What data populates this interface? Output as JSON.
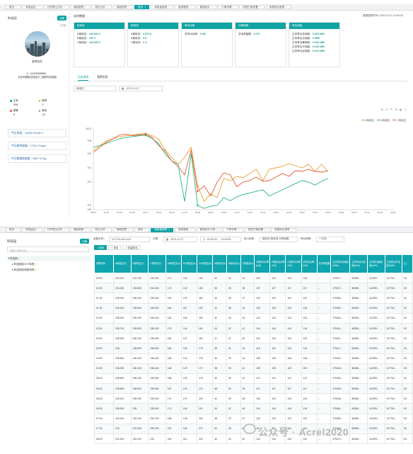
{
  "top_tabs": [
    "首页",
    "用电监控",
    "分项同比分析",
    "能耗报表",
    "同比分析",
    "用能报表",
    "首页",
    "电参量报表",
    "能源报表",
    "能耗统计",
    "订单详情",
    "收费方案设置",
    "电费综合报表"
  ],
  "top_active": 6,
  "bottom_tabs": [
    "首页",
    "用电监控",
    "分项同比分析",
    "能耗报表",
    "同比分析",
    "用能报表",
    "首页",
    "电参量报表",
    "能源报表",
    "能耗统计计算",
    "订单详情",
    "收费方案设置",
    "电费综合报表"
  ],
  "bottom_active": 7,
  "panel1": {
    "tree_title": "科技园",
    "switch_label": "切换",
    "switch_hint": "(切换)",
    "station_name": "变电站名",
    "station_id": "A（10206338968）",
    "station_addr": "北京市朝阳区科技中二路研究科技园",
    "counts": [
      {
        "label": "正常",
        "value": "398",
        "color": "#10a3a3"
      },
      {
        "label": "故障",
        "value": "0",
        "color": "#e6b619"
      },
      {
        "label": "报警",
        "value": "6",
        "color": "#e85a4f"
      },
      {
        "label": "离线",
        "value": "15",
        "color": "#999999"
      }
    ],
    "stats": [
      "今日用电：14159.25 kW·h",
      "今日碳排放量：1740.17 kgce",
      "今日碳减排放量：5657.14 kg"
    ],
    "realtime_label": "实时数据",
    "update_time": "数据更新时间: 2023-10-27 14:45:00",
    "cards": [
      {
        "title": "相电压",
        "lines": [
          [
            "A相电压：",
            "230.600 V"
          ],
          [
            "B相电压：",
            "230 V"
          ],
          [
            "C相电压：",
            "231.600 V"
          ]
        ]
      },
      {
        "title": "相电流",
        "lines": [
          [
            "A相电流：",
            "0.070 A"
          ],
          [
            "B相电流：",
            "0 A"
          ],
          [
            "C相电流：",
            "0 A"
          ]
        ]
      },
      {
        "title": "有功功率",
        "lines": [
          [
            "总有功功率：",
            "0 kW"
          ]
        ]
      },
      {
        "title": "功率因数",
        "lines": [
          [
            "总功率因数：",
            "0.270"
          ]
        ]
      },
      {
        "title": "有功电能",
        "lines": [
          [
            "正向有功总电能：",
            "0.430 kWh"
          ],
          [
            "正向有功尖电能：",
            "0 kWh"
          ],
          [
            "正向有功峰电能：",
            "0.150 kWh"
          ],
          [
            "正向有功平电能：",
            "0.160 kWh"
          ],
          [
            "正向有功谷电能：",
            "0.120 kWh"
          ]
        ]
      }
    ],
    "tabs": [
      "历史曲线",
      "报警信息"
    ],
    "param_select": "相电压",
    "date_select": "2023-10-27",
    "toolbar_glyphs": "↻ ⤢ ↶ ⟲ ▤ ⇩"
  },
  "chart_data": {
    "type": "line",
    "x": [
      "00:00",
      "01:00",
      "02:00",
      "03:00",
      "04:00",
      "05:00",
      "06:00",
      "07:00",
      "08:00",
      "09:00",
      "10:00",
      "11:00",
      "12:00",
      "13:00",
      "14:00",
      "15:00",
      "16:00",
      "17:00",
      "18:00",
      "19:00",
      "20:00",
      "21:00",
      "22:00",
      "23:00"
    ],
    "ylim": [
      228,
      240.8
    ],
    "yticks": [
      "228",
      "229",
      "232",
      "234",
      "236",
      "238",
      "240.8"
    ],
    "series": [
      {
        "name": "A相电压",
        "color": "#e8a030",
        "x": [
          0,
          1,
          1.5,
          2,
          2.5,
          3,
          3.5,
          4,
          4.5,
          5,
          5.5,
          6,
          6.5,
          7,
          7.5,
          8,
          8.5,
          9,
          9.5,
          10,
          10.5,
          11,
          11.5,
          12,
          12.5,
          13,
          13.5,
          14,
          14.5,
          15,
          15.5,
          16,
          16.5,
          17,
          17.5,
          18
        ],
        "values": [
          236.5,
          238,
          238.5,
          239,
          239.2,
          239.4,
          239.6,
          239.7,
          239.2,
          238.5,
          236.6,
          235.5,
          234.5,
          235.5,
          237,
          231.5,
          229.5,
          230.5,
          230,
          232.5,
          232.2,
          232.8,
          232.6,
          233.2,
          233.8,
          232.2,
          233.8,
          234,
          234.2,
          234.6,
          234.3,
          234,
          234.5,
          233.5,
          234.5,
          233.5
        ]
      },
      {
        "name": "B相电压",
        "color": "#22b57a",
        "x": [
          0,
          1,
          1.5,
          2,
          2.5,
          3,
          3.5,
          4,
          4.5,
          5,
          5.5,
          6,
          6.5,
          7,
          7.5,
          8,
          8.5,
          9,
          9.5,
          10,
          10.5,
          11,
          11.5,
          12,
          12.5,
          13,
          13.5,
          14,
          14.5,
          15,
          15.5,
          16,
          16.5,
          17,
          17.5,
          18
        ],
        "values": [
          237,
          237.6,
          238,
          238.5,
          238.8,
          239,
          239.2,
          239.3,
          238.6,
          237.6,
          236,
          235,
          234.5,
          229.5,
          236,
          229,
          228.3,
          228.8,
          229,
          230,
          229.6,
          230.1,
          230.4,
          230.6,
          230.8,
          231,
          230.2,
          230.6,
          231,
          231.4,
          231.8,
          232.2,
          232,
          231.6,
          232.1,
          232.5
        ]
      },
      {
        "name": "C相电压",
        "color": "#e8573a",
        "x": [
          0,
          1,
          1.5,
          2,
          2.5,
          3,
          3.5,
          4,
          4.5,
          5,
          5.5,
          6,
          6.5,
          7,
          7.5,
          8,
          8.5,
          9,
          9.5,
          10,
          10.5,
          11,
          11.5,
          12,
          12.5,
          13,
          13.5,
          14,
          14.5,
          15,
          15.5,
          16,
          16.5,
          17,
          17.5,
          18
        ],
        "values": [
          236.2,
          237.8,
          238.5,
          239.4,
          239.6,
          239.2,
          239.4,
          239.6,
          238.8,
          237.3,
          236.4,
          235,
          234.2,
          233,
          236.6,
          230.8,
          231.5,
          230.2,
          232,
          233.3,
          233,
          231.4,
          232,
          232.2,
          232.7,
          232.1,
          232.2,
          232.7,
          233.2,
          232.8,
          233.6,
          233.5,
          233.8,
          233.5,
          233.4,
          233.6
        ]
      }
    ]
  },
  "panel2": {
    "tree_title": "科技园",
    "switch_label": "切换",
    "search_placeholder": "请输入搜索内容",
    "tree": [
      "科技园",
      "科技园站1OT电表",
      "科技园站测数电表"
    ],
    "filters": {
      "device_label": "回路名称：",
      "device_value": "KJY-PA-AA1-A01",
      "date_label": "日期：",
      "date_value": "2023-10-27",
      "time_value": "00:00:00 → 23:59:59",
      "param_label": "电力参数：",
      "param_value": "相电压,相电流,功率因数...",
      "interval_label": "时间间隔：",
      "interval_value": "一分钟"
    },
    "buttons": [
      "查询",
      "导出",
      "批量导出"
    ],
    "columns": [
      "采集时间",
      "A相电压(V)",
      "B相电压(V)",
      "C相电压(V)",
      "AB线电压(V)",
      "BC线电压(V)",
      "CA线电压(V)",
      "A相电流(A)",
      "B相电流(A)",
      "C相电流(A)",
      "A相有功功率(kW)",
      "B相有功功率(kW)",
      "C相有功功率(kW)",
      "总有功功率(kW)",
      "总功率因数",
      "正向有功总电能(kWh)",
      "正向有功尖电能(kWh)",
      "正向有功峰电能(kWh)",
      "正向有功平电能(kWh)",
      "正..."
    ],
    "rows": [
      [
        "00:00",
        "234.200",
        "234.700",
        "234.000",
        "172",
        "130",
        "169",
        "39",
        "30",
        "39",
        "109",
        "--",
        "279377...",
        "56358...",
        "112299...",
        "107761...",
        "53"
      ],
      [
        "00:30",
        "234.400",
        "234.800",
        "234.200",
        "170",
        "132",
        "169",
        "36",
        "30",
        "38",
        "107",
        "--",
        "279372...",
        "56358...",
        "112299...",
        "107761...",
        "53"
      ],
      [
        "01:00",
        "235.200",
        "235.200",
        "235.400",
        "149",
        "129",
        "163",
        "34",
        "28",
        "37",
        "102",
        "--",
        "279384...",
        "56358...",
        "112299...",
        "107761...",
        "53"
      ],
      [
        "01:30",
        "235.100",
        "235.600",
        "235.600",
        "166",
        "167",
        "190",
        "42",
        "38",
        "43",
        "125",
        "--",
        "279394...",
        "56358...",
        "112299...",
        "107761...",
        "53"
      ],
      [
        "02:00",
        "235.200",
        "235.400",
        "235.400",
        "163",
        "156",
        "159",
        "40",
        "33",
        "43",
        "123",
        "--",
        "279404...",
        "56358...",
        "112299...",
        "107761...",
        "53"
      ],
      [
        "02:30",
        "235.700",
        "235.900",
        "236.200",
        "175",
        "144",
        "161",
        "40",
        "32",
        "41",
        "116",
        "--",
        "279401...",
        "56358...",
        "112299...",
        "107761...",
        "53"
      ],
      [
        "03:00",
        "235.900",
        "236.200",
        "236.300",
        "160",
        "147",
        "164",
        "41",
        "31",
        "40",
        "115",
        "--",
        "279411...",
        "56358...",
        "112299...",
        "107761...",
        "53"
      ],
      [
        "03:30",
        "236",
        "236.500",
        "236.500",
        "165",
        "135",
        "175",
        "38",
        "31",
        "44",
        "115",
        "--",
        "279417...",
        "56358...",
        "112299...",
        "107761...",
        "53"
      ],
      [
        "04:00",
        "235.600",
        "236.400",
        "236.400",
        "168",
        "120",
        "175",
        "36",
        "29",
        "43",
        "108",
        "--",
        "279422...",
        "56358...",
        "112299...",
        "107761...",
        "53"
      ],
      [
        "04:30",
        "236.000",
        "236.100",
        "236.400",
        "166",
        "129",
        "177",
        "38",
        "30",
        "41",
        "109",
        "--",
        "279426...",
        "56358...",
        "112299...",
        "107761...",
        "53"
      ],
      [
        "05:00",
        "235.800",
        "236.100",
        "235.900",
        "168",
        "125",
        "175",
        "39",
        "30",
        "42",
        "110",
        "--",
        "279430...",
        "56358...",
        "112299...",
        "107761...",
        "53"
      ],
      [
        "05:30",
        "235.600",
        "235.900",
        "235.900",
        "167",
        "133",
        "170",
        "38",
        "30",
        "39",
        "107",
        "--",
        "279439...",
        "56358...",
        "112299...",
        "107761...",
        "53"
      ],
      [
        "06:00",
        "236.100",
        "235.400",
        "235.000",
        "174",
        "170",
        "209",
        "40",
        "39",
        "48",
        "126",
        "--",
        "279445...",
        "56358...",
        "112299...",
        "107761...",
        "53"
      ],
      [
        "06:30",
        "235.500",
        "235",
        "235.500",
        "171",
        "145",
        "201",
        "39",
        "32",
        "46",
        "118",
        "--",
        "279451...",
        "56358...",
        "112299...",
        "107761...",
        "53"
      ],
      [
        "07:00",
        "234.100",
        "234.200",
        "234.700",
        "168",
        "148",
        "204",
        "38",
        "33",
        "47",
        "120",
        "--",
        "279459...",
        "56358...",
        "112299...",
        "107761...",
        "53"
      ],
      [
        "07:30",
        "233",
        "232.900",
        "233.200",
        "222",
        "234",
        "272",
        "50",
        "49",
        "61",
        "161",
        "--",
        "279466...",
        "56358...",
        "112299...",
        "107761...",
        "53"
      ],
      [
        "08:00",
        "232.300",
        "232.200",
        "233",
        "200",
        "214",
        "223",
        "45",
        "43",
        "52",
        "140",
        "--",
        "279474...",
        "56358...",
        "112299...",
        "107761...",
        "53"
      ]
    ]
  },
  "watermark": "公众号 · Acrel2020"
}
